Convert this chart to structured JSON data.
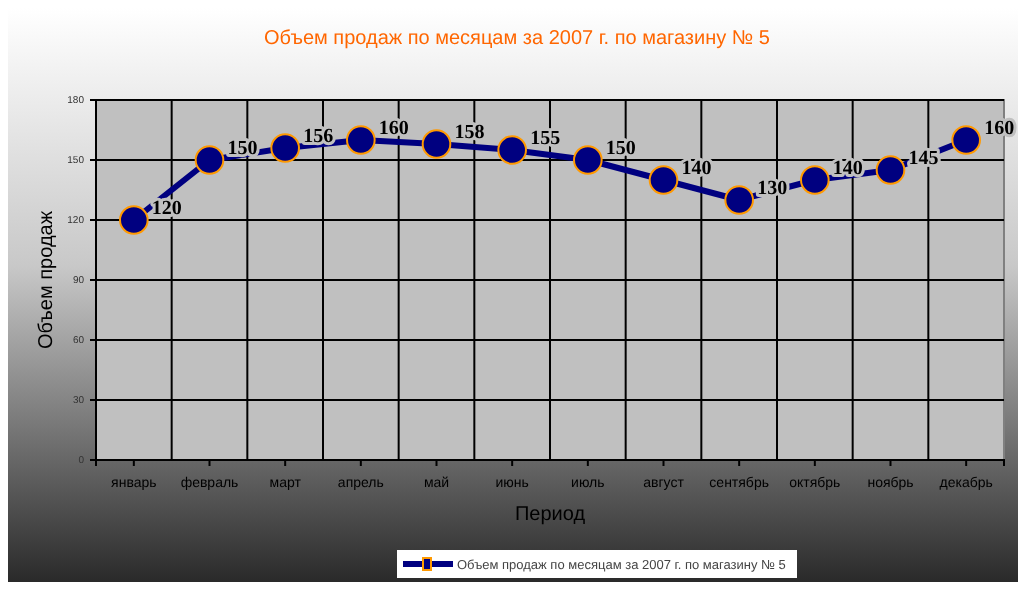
{
  "chart_data": {
    "type": "line",
    "title": "Объем продаж по месяцам за 2007 г. по магазину № 5",
    "xlabel": "Период",
    "ylabel": "Объем продаж",
    "categories": [
      "январь",
      "февраль",
      "март",
      "апрель",
      "май",
      "июнь",
      "июль",
      "август",
      "сентябрь",
      "октябрь",
      "ноябрь",
      "декабрь"
    ],
    "series": [
      {
        "name": "Объем продаж по месяцам за 2007 г. по магазину № 5",
        "color": "#000080",
        "values": [
          120,
          150,
          156,
          160,
          158,
          155,
          150,
          140,
          130,
          140,
          145,
          160
        ]
      }
    ],
    "ylim": [
      0,
      180
    ],
    "yticks": [
      0,
      30,
      60,
      90,
      120,
      150,
      180
    ],
    "grid": true,
    "legend": "bottom",
    "marker": "circle",
    "line_style": "solid",
    "data_labels": true
  }
}
